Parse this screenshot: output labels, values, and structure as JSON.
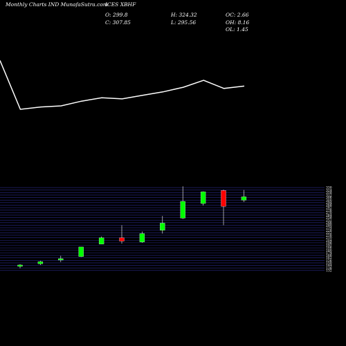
{
  "header": {
    "site": "Monthly Charts IND MunafaSutra.com",
    "symbol": "ICES XBHF",
    "open": "O: 299.8",
    "close": "C: 307.85",
    "high": "H: 324.32",
    "low": "L: 295.56",
    "oc": "OC: 2.66",
    "oh": "OH: 8.16",
    "ol": "OL: 1.45"
  },
  "colors": {
    "background": "#000000",
    "up": "#00ff00",
    "down": "#ff0000",
    "line": "#ffffff",
    "grid": "#2b2b8c"
  },
  "chart_data": [
    {
      "type": "line",
      "title": "",
      "x": [
        1,
        2,
        3,
        4,
        5,
        6,
        7,
        8,
        9,
        10,
        11,
        12,
        13
      ],
      "series": [
        {
          "values": [
            100,
            58,
            60,
            61,
            65,
            68,
            67,
            70,
            73,
            77,
            83,
            76,
            78
          ]
        }
      ]
    },
    {
      "type": "candlestick",
      "title": "",
      "ylim": [
        130,
        335
      ],
      "y_tick_labels": [
        "330",
        "324",
        "318",
        "312",
        "306",
        "300",
        "294",
        "288",
        "282",
        "276",
        "270",
        "264",
        "258",
        "252",
        "246",
        "240",
        "234",
        "228",
        "222",
        "216",
        "210",
        "204",
        "198",
        "192",
        "186",
        "180",
        "174",
        "168",
        "162",
        "156",
        "150",
        "144",
        "138",
        "132"
      ],
      "candles": [
        {
          "open": 142,
          "high": 147,
          "low": 137,
          "close": 145,
          "direction": "up"
        },
        {
          "open": 148,
          "high": 155,
          "low": 145,
          "close": 153,
          "direction": "up"
        },
        {
          "open": 157,
          "high": 167,
          "low": 152,
          "close": 160,
          "direction": "up"
        },
        {
          "open": 165,
          "high": 188,
          "low": 164,
          "close": 188,
          "direction": "up"
        },
        {
          "open": 195,
          "high": 213,
          "low": 195,
          "close": 210,
          "direction": "up"
        },
        {
          "open": 210,
          "high": 240,
          "low": 196,
          "close": 202,
          "direction": "down"
        },
        {
          "open": 200,
          "high": 225,
          "low": 198,
          "close": 220,
          "direction": "up"
        },
        {
          "open": 228,
          "high": 262,
          "low": 220,
          "close": 245,
          "direction": "up"
        },
        {
          "open": 257,
          "high": 333,
          "low": 255,
          "close": 297,
          "direction": "up"
        },
        {
          "open": 292,
          "high": 321,
          "low": 287,
          "close": 320,
          "direction": "up"
        },
        {
          "open": 323,
          "high": 325,
          "low": 240,
          "close": 285,
          "direction": "down"
        },
        {
          "open": 299.8,
          "high": 324.32,
          "low": 295.56,
          "close": 307.85,
          "direction": "up"
        }
      ]
    }
  ]
}
